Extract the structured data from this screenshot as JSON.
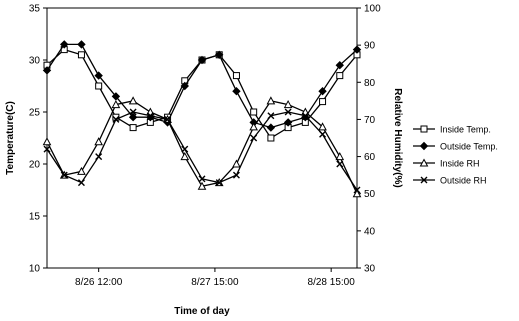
{
  "chart_data": {
    "type": "line",
    "title": "",
    "xlabel": "Time of day",
    "ylabel": "Temperature(C)",
    "y2label": "Relative Humidity(%)",
    "x_ticks": [
      {
        "x": 12,
        "label": "8/26 12:00"
      },
      {
        "x": 39,
        "label": "8/27 15:00"
      },
      {
        "x": 66,
        "label": "8/28 15:00"
      }
    ],
    "xlim": [
      0,
      72
    ],
    "ylim": [
      10,
      35
    ],
    "y_ticks": [
      10,
      15,
      20,
      25,
      30,
      35
    ],
    "y2lim": [
      30,
      100
    ],
    "y2_ticks": [
      30,
      40,
      50,
      60,
      70,
      80,
      90,
      100
    ],
    "grid": false,
    "legend_position": "right",
    "series": [
      {
        "name": "Inside Temp.",
        "axis": "left",
        "marker": "square",
        "x": [
          0,
          4,
          8,
          12,
          16,
          20,
          24,
          28,
          32,
          36,
          40,
          44,
          48,
          52,
          56,
          60,
          64,
          68,
          72
        ],
        "values": [
          29.5,
          31.0,
          30.5,
          27.5,
          24.5,
          23.5,
          24.0,
          24.5,
          28.0,
          30.0,
          30.5,
          28.5,
          25.0,
          22.5,
          23.5,
          24.0,
          26.0,
          28.5,
          30.5
        ]
      },
      {
        "name": "Outside Temp.",
        "axis": "left",
        "marker": "diamond",
        "x": [
          0,
          4,
          8,
          12,
          16,
          20,
          24,
          28,
          32,
          36,
          40,
          44,
          48,
          52,
          56,
          60,
          64,
          68,
          72
        ],
        "values": [
          29.0,
          31.5,
          31.5,
          28.5,
          26.5,
          24.5,
          24.5,
          24.0,
          27.5,
          30.0,
          30.5,
          27.0,
          24.0,
          23.5,
          24.0,
          24.5,
          27.0,
          29.5,
          31.0
        ]
      },
      {
        "name": "Inside RH",
        "axis": "right",
        "marker": "triangle",
        "x": [
          0,
          4,
          8,
          12,
          16,
          20,
          24,
          28,
          32,
          36,
          40,
          44,
          48,
          52,
          56,
          60,
          64,
          68,
          72
        ],
        "values": [
          64,
          55,
          56,
          64,
          74,
          75,
          72,
          70,
          60,
          52,
          53,
          58,
          68,
          75,
          74,
          72,
          68,
          60,
          50
        ]
      },
      {
        "name": "Outside RH",
        "axis": "right",
        "marker": "x",
        "x": [
          0,
          4,
          8,
          12,
          16,
          20,
          24,
          28,
          32,
          36,
          40,
          44,
          48,
          52,
          56,
          60,
          64,
          68,
          72
        ],
        "values": [
          62,
          55,
          53,
          60,
          70,
          72,
          71,
          70,
          62,
          54,
          53,
          55,
          65,
          71,
          72,
          71,
          66,
          58,
          51
        ]
      }
    ]
  }
}
